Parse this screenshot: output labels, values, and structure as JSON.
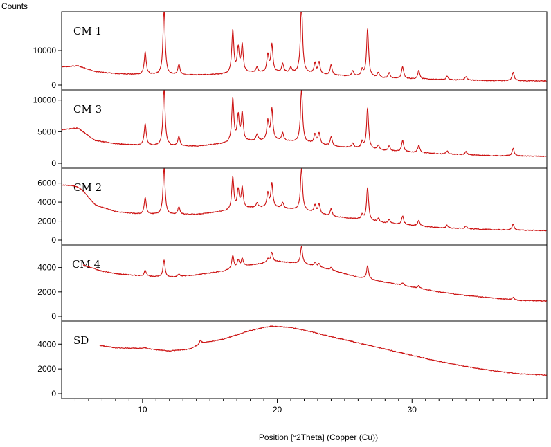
{
  "chart_data": {
    "type": "line",
    "ylabel": "Counts",
    "xlabel": "Position [°2Theta] (Copper (Cu))",
    "xlim": [
      4,
      40
    ],
    "x_ticks": [
      10,
      20,
      30
    ],
    "line_color": "#cc1111",
    "panels": [
      {
        "name": "CM 1",
        "ylim": [
          0,
          21000
        ],
        "y_ticks": [
          0,
          10000
        ],
        "baseline": [
          [
            4,
            5200
          ],
          [
            5.2,
            5600
          ],
          [
            6.5,
            3900
          ],
          [
            8,
            3300
          ],
          [
            10,
            3000
          ],
          [
            14,
            2900
          ],
          [
            16.5,
            3200
          ],
          [
            18,
            3600
          ],
          [
            20,
            3600
          ],
          [
            22,
            3400
          ],
          [
            24,
            2800
          ],
          [
            26,
            2500
          ],
          [
            28,
            2000
          ],
          [
            32,
            1600
          ],
          [
            36,
            1300
          ],
          [
            40,
            1200
          ]
        ],
        "peaks": [
          [
            10.2,
            6500
          ],
          [
            11.6,
            20000
          ],
          [
            12.7,
            3000
          ],
          [
            16.7,
            12500
          ],
          [
            17.1,
            7000
          ],
          [
            17.4,
            8000
          ],
          [
            18.5,
            1500
          ],
          [
            19.3,
            5000
          ],
          [
            19.6,
            8000
          ],
          [
            20.4,
            2500
          ],
          [
            21.0,
            1500
          ],
          [
            21.8,
            21000
          ],
          [
            22.8,
            3000
          ],
          [
            23.1,
            3500
          ],
          [
            24.0,
            3000
          ],
          [
            25.6,
            1500
          ],
          [
            26.3,
            2000
          ],
          [
            26.7,
            14000
          ],
          [
            27.5,
            1500
          ],
          [
            28.3,
            1500
          ],
          [
            29.3,
            3500
          ],
          [
            30.5,
            2500
          ],
          [
            32.6,
            1000
          ],
          [
            34.0,
            1000
          ],
          [
            37.5,
            2500
          ]
        ]
      },
      {
        "name": "CM 3",
        "ylim": [
          0,
          11500
        ],
        "y_ticks": [
          0,
          5000,
          10000
        ],
        "baseline": [
          [
            4,
            5300
          ],
          [
            5.2,
            5600
          ],
          [
            6.5,
            3600
          ],
          [
            8,
            3100
          ],
          [
            10,
            2800
          ],
          [
            14,
            2700
          ],
          [
            16.5,
            3200
          ],
          [
            18,
            3500
          ],
          [
            20,
            3600
          ],
          [
            22,
            3300
          ],
          [
            24,
            2700
          ],
          [
            26,
            2400
          ],
          [
            28,
            2000
          ],
          [
            32,
            1500
          ],
          [
            36,
            1200
          ],
          [
            40,
            1100
          ]
        ],
        "peaks": [
          [
            10.2,
            3500
          ],
          [
            11.6,
            9500
          ],
          [
            12.7,
            1500
          ],
          [
            16.7,
            7000
          ],
          [
            17.1,
            4000
          ],
          [
            17.4,
            4500
          ],
          [
            18.5,
            1000
          ],
          [
            19.3,
            3000
          ],
          [
            19.6,
            5000
          ],
          [
            20.4,
            1200
          ],
          [
            21.8,
            8500
          ],
          [
            22.8,
            1500
          ],
          [
            23.1,
            1800
          ],
          [
            24.0,
            1500
          ],
          [
            25.6,
            700
          ],
          [
            26.3,
            1000
          ],
          [
            26.7,
            6500
          ],
          [
            27.5,
            700
          ],
          [
            28.3,
            800
          ],
          [
            29.3,
            1800
          ],
          [
            30.5,
            1200
          ],
          [
            32.6,
            500
          ],
          [
            34.0,
            500
          ],
          [
            37.5,
            1200
          ]
        ]
      },
      {
        "name": "CM 2",
        "ylim": [
          0,
          7500
        ],
        "y_ticks": [
          0,
          2000,
          4000,
          6000
        ],
        "baseline": [
          [
            4,
            5800
          ],
          [
            5.0,
            5700
          ],
          [
            5.5,
            5300
          ],
          [
            6.5,
            3700
          ],
          [
            8,
            3000
          ],
          [
            10,
            2700
          ],
          [
            14,
            2700
          ],
          [
            16.5,
            3100
          ],
          [
            18,
            3400
          ],
          [
            20,
            3400
          ],
          [
            22,
            3100
          ],
          [
            24,
            2500
          ],
          [
            26,
            2200
          ],
          [
            28,
            1800
          ],
          [
            32,
            1300
          ],
          [
            36,
            1100
          ],
          [
            40,
            1000
          ]
        ],
        "peaks": [
          [
            10.2,
            1800
          ],
          [
            11.6,
            5000
          ],
          [
            12.7,
            800
          ],
          [
            16.7,
            3500
          ],
          [
            17.1,
            2000
          ],
          [
            17.4,
            2200
          ],
          [
            18.5,
            500
          ],
          [
            19.3,
            1500
          ],
          [
            19.6,
            2500
          ],
          [
            20.4,
            600
          ],
          [
            21.8,
            4500
          ],
          [
            22.8,
            800
          ],
          [
            23.1,
            1000
          ],
          [
            24.0,
            800
          ],
          [
            26.3,
            500
          ],
          [
            26.7,
            3500
          ],
          [
            27.5,
            400
          ],
          [
            28.3,
            400
          ],
          [
            29.3,
            900
          ],
          [
            30.5,
            600
          ],
          [
            32.6,
            300
          ],
          [
            34.0,
            300
          ],
          [
            37.5,
            600
          ]
        ]
      },
      {
        "name": "CM 4",
        "ylim": [
          0,
          5800
        ],
        "y_ticks": [
          0,
          2000,
          4000
        ],
        "start_x": 5.6,
        "baseline": [
          [
            5.6,
            4200
          ],
          [
            7,
            3700
          ],
          [
            8,
            3500
          ],
          [
            10,
            3300
          ],
          [
            12,
            3200
          ],
          [
            14,
            3400
          ],
          [
            16,
            3700
          ],
          [
            18,
            4200
          ],
          [
            20,
            4500
          ],
          [
            22,
            4300
          ],
          [
            24,
            3800
          ],
          [
            26,
            3200
          ],
          [
            28,
            2800
          ],
          [
            30,
            2400
          ],
          [
            32,
            2000
          ],
          [
            34,
            1700
          ],
          [
            36,
            1500
          ],
          [
            38,
            1300
          ],
          [
            40,
            1250
          ]
        ],
        "peaks": [
          [
            10.2,
            500
          ],
          [
            11.6,
            1400
          ],
          [
            12.7,
            200
          ],
          [
            16.7,
            1100
          ],
          [
            17.1,
            600
          ],
          [
            17.4,
            700
          ],
          [
            19.3,
            300
          ],
          [
            19.6,
            800
          ],
          [
            21.8,
            1400
          ],
          [
            22.8,
            300
          ],
          [
            23.1,
            300
          ],
          [
            24.0,
            200
          ],
          [
            26.7,
            1100
          ],
          [
            29.3,
            200
          ],
          [
            30.5,
            200
          ],
          [
            37.5,
            200
          ]
        ]
      },
      {
        "name": "SD",
        "ylim": [
          0,
          5800
        ],
        "y_ticks": [
          0,
          2000,
          4000
        ],
        "start_x": 6.8,
        "baseline": [
          [
            6.8,
            3900
          ],
          [
            8,
            3700
          ],
          [
            10,
            3650
          ],
          [
            12,
            3450
          ],
          [
            13.5,
            3600
          ],
          [
            14.5,
            4100
          ],
          [
            16,
            4400
          ],
          [
            18,
            5100
          ],
          [
            19.5,
            5450
          ],
          [
            21,
            5350
          ],
          [
            22.5,
            5000
          ],
          [
            24,
            4600
          ],
          [
            26,
            4100
          ],
          [
            28,
            3600
          ],
          [
            30,
            3100
          ],
          [
            32,
            2600
          ],
          [
            34,
            2200
          ],
          [
            36,
            1850
          ],
          [
            38,
            1600
          ],
          [
            40,
            1500
          ]
        ],
        "peaks": [
          [
            14.3,
            300
          ],
          [
            10.2,
            100
          ]
        ]
      }
    ]
  }
}
